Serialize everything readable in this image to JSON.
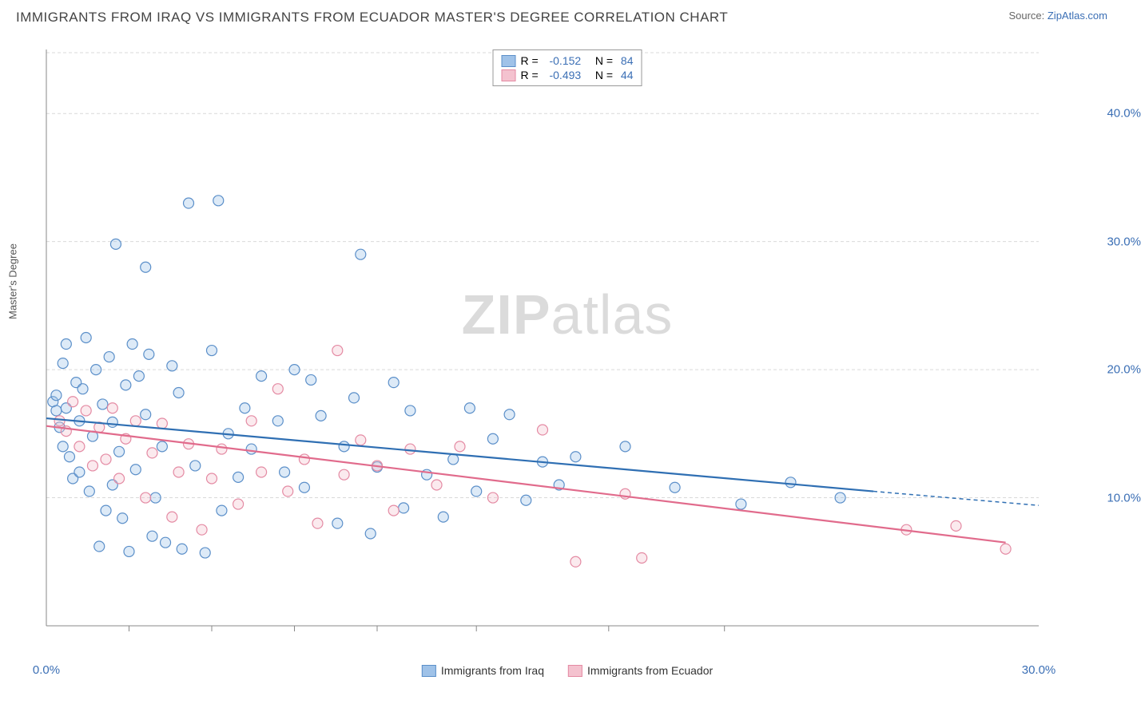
{
  "title": "IMMIGRANTS FROM IRAQ VS IMMIGRANTS FROM ECUADOR MASTER'S DEGREE CORRELATION CHART",
  "source_label": "Source: ",
  "source_name": "ZipAtlas.com",
  "watermark_1": "ZIP",
  "watermark_2": "atlas",
  "chart": {
    "type": "scatter",
    "xlim": [
      0,
      30
    ],
    "ylim": [
      0,
      45
    ],
    "x_ticks": [
      0,
      30
    ],
    "x_tick_labels": [
      "0.0%",
      "30.0%"
    ],
    "x_minor_tick_positions": [
      2.5,
      5,
      7.5,
      10,
      13,
      17,
      20.5
    ],
    "y_ticks": [
      10,
      20,
      30,
      40
    ],
    "y_tick_labels": [
      "10.0%",
      "20.0%",
      "30.0%",
      "40.0%"
    ],
    "ylabel": "Master's Degree",
    "background_color": "#ffffff",
    "grid_color": "#d9d9d9",
    "grid_dash": "4,3",
    "axis_color": "#888888",
    "tick_label_color": "#3b6fb5",
    "marker_radius": 6.5,
    "marker_fill_opacity": 0.35,
    "marker_stroke_width": 1.2,
    "trend_line_width": 2.2,
    "series": [
      {
        "name": "Immigrants from Iraq",
        "color_fill": "#9fc2e8",
        "color_stroke": "#5b8fc9",
        "line_color": "#2f6fb3",
        "R": "-0.152",
        "N": "84",
        "trend": {
          "x1": 0,
          "y1": 16.2,
          "x2": 25,
          "y2": 10.5,
          "ext_x2": 30,
          "ext_y2": 9.4
        },
        "points": [
          [
            0.2,
            17.5
          ],
          [
            0.3,
            18.0
          ],
          [
            0.3,
            16.8
          ],
          [
            0.4,
            15.5
          ],
          [
            0.5,
            20.5
          ],
          [
            0.5,
            14.0
          ],
          [
            0.6,
            17.0
          ],
          [
            0.6,
            22.0
          ],
          [
            0.7,
            13.2
          ],
          [
            0.8,
            11.5
          ],
          [
            0.9,
            19.0
          ],
          [
            1.0,
            12.0
          ],
          [
            1.0,
            16.0
          ],
          [
            1.1,
            18.5
          ],
          [
            1.2,
            22.5
          ],
          [
            1.3,
            10.5
          ],
          [
            1.4,
            14.8
          ],
          [
            1.5,
            20.0
          ],
          [
            1.6,
            6.2
          ],
          [
            1.7,
            17.3
          ],
          [
            1.8,
            9.0
          ],
          [
            1.9,
            21.0
          ],
          [
            2.0,
            11.0
          ],
          [
            2.0,
            15.9
          ],
          [
            2.1,
            29.8
          ],
          [
            2.2,
            13.6
          ],
          [
            2.3,
            8.4
          ],
          [
            2.4,
            18.8
          ],
          [
            2.5,
            5.8
          ],
          [
            2.6,
            22.0
          ],
          [
            2.7,
            12.2
          ],
          [
            2.8,
            19.5
          ],
          [
            3.0,
            28.0
          ],
          [
            3.0,
            16.5
          ],
          [
            3.1,
            21.2
          ],
          [
            3.2,
            7.0
          ],
          [
            3.3,
            10.0
          ],
          [
            3.5,
            14.0
          ],
          [
            3.6,
            6.5
          ],
          [
            3.8,
            20.3
          ],
          [
            4.0,
            18.2
          ],
          [
            4.1,
            6.0
          ],
          [
            4.3,
            33.0
          ],
          [
            4.5,
            12.5
          ],
          [
            4.8,
            5.7
          ],
          [
            5.0,
            21.5
          ],
          [
            5.2,
            33.2
          ],
          [
            5.3,
            9.0
          ],
          [
            5.5,
            15.0
          ],
          [
            5.8,
            11.6
          ],
          [
            6.0,
            17.0
          ],
          [
            6.2,
            13.8
          ],
          [
            6.5,
            19.5
          ],
          [
            7.0,
            16.0
          ],
          [
            7.2,
            12.0
          ],
          [
            7.5,
            20.0
          ],
          [
            7.8,
            10.8
          ],
          [
            8.0,
            19.2
          ],
          [
            8.3,
            16.4
          ],
          [
            8.8,
            8.0
          ],
          [
            9.0,
            14.0
          ],
          [
            9.3,
            17.8
          ],
          [
            9.5,
            29.0
          ],
          [
            9.8,
            7.2
          ],
          [
            10.0,
            12.4
          ],
          [
            10.5,
            19.0
          ],
          [
            10.8,
            9.2
          ],
          [
            11.0,
            16.8
          ],
          [
            11.5,
            11.8
          ],
          [
            12.0,
            8.5
          ],
          [
            12.3,
            13.0
          ],
          [
            12.8,
            17.0
          ],
          [
            13.0,
            10.5
          ],
          [
            13.5,
            14.6
          ],
          [
            14.0,
            16.5
          ],
          [
            14.5,
            9.8
          ],
          [
            15.0,
            12.8
          ],
          [
            15.5,
            11.0
          ],
          [
            16.0,
            13.2
          ],
          [
            17.5,
            14.0
          ],
          [
            19.0,
            10.8
          ],
          [
            21.0,
            9.5
          ],
          [
            22.5,
            11.2
          ],
          [
            24.0,
            10.0
          ]
        ]
      },
      {
        "name": "Immigrants from Ecuador",
        "color_fill": "#f4c2cf",
        "color_stroke": "#e48aa3",
        "line_color": "#e16b8c",
        "R": "-0.493",
        "N": "44",
        "trend": {
          "x1": 0,
          "y1": 15.6,
          "x2": 29,
          "y2": 6.5,
          "ext_x2": 30,
          "ext_y2": 6.2
        },
        "points": [
          [
            0.4,
            16.0
          ],
          [
            0.6,
            15.2
          ],
          [
            0.8,
            17.5
          ],
          [
            1.0,
            14.0
          ],
          [
            1.2,
            16.8
          ],
          [
            1.4,
            12.5
          ],
          [
            1.6,
            15.5
          ],
          [
            1.8,
            13.0
          ],
          [
            2.0,
            17.0
          ],
          [
            2.2,
            11.5
          ],
          [
            2.4,
            14.6
          ],
          [
            2.7,
            16.0
          ],
          [
            3.0,
            10.0
          ],
          [
            3.2,
            13.5
          ],
          [
            3.5,
            15.8
          ],
          [
            3.8,
            8.5
          ],
          [
            4.0,
            12.0
          ],
          [
            4.3,
            14.2
          ],
          [
            4.7,
            7.5
          ],
          [
            5.0,
            11.5
          ],
          [
            5.3,
            13.8
          ],
          [
            5.8,
            9.5
          ],
          [
            6.2,
            16.0
          ],
          [
            6.5,
            12.0
          ],
          [
            7.0,
            18.5
          ],
          [
            7.3,
            10.5
          ],
          [
            7.8,
            13.0
          ],
          [
            8.2,
            8.0
          ],
          [
            8.8,
            21.5
          ],
          [
            9.0,
            11.8
          ],
          [
            9.5,
            14.5
          ],
          [
            10.0,
            12.5
          ],
          [
            10.5,
            9.0
          ],
          [
            11.0,
            13.8
          ],
          [
            11.8,
            11.0
          ],
          [
            12.5,
            14.0
          ],
          [
            13.5,
            10.0
          ],
          [
            15.0,
            15.3
          ],
          [
            16.0,
            5.0
          ],
          [
            17.5,
            10.3
          ],
          [
            18.0,
            5.3
          ],
          [
            26.0,
            7.5
          ],
          [
            27.5,
            7.8
          ],
          [
            29.0,
            6.0
          ]
        ]
      }
    ]
  }
}
